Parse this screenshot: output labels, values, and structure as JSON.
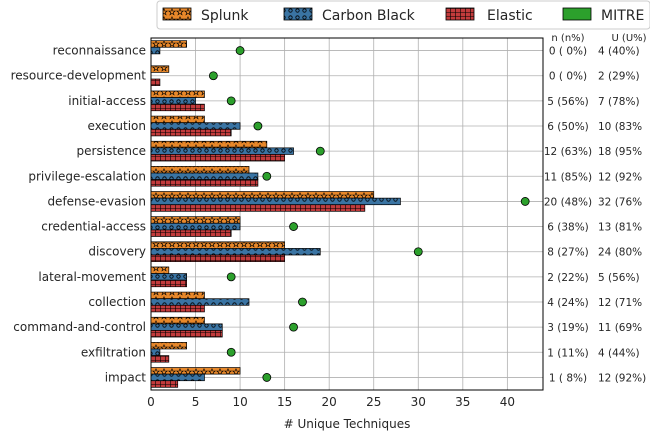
{
  "chart_data": {
    "type": "bar",
    "orientation": "horizontal",
    "xlabel": "# Unique Techniques",
    "ylabel": "",
    "xlim": [
      0,
      44
    ],
    "xticks": [
      0,
      5,
      10,
      15,
      20,
      25,
      30,
      35,
      40
    ],
    "grid": true,
    "legend_position": "top",
    "categories": [
      "reconnaissance",
      "resource-development",
      "initial-access",
      "execution",
      "persistence",
      "privilege-escalation",
      "defense-evasion",
      "credential-access",
      "discovery",
      "lateral-movement",
      "collection",
      "command-and-control",
      "exfiltration",
      "impact"
    ],
    "series": [
      {
        "name": "Splunk",
        "kind": "bar",
        "color": "#e8882a",
        "hatch": "star",
        "values": [
          4,
          2,
          6,
          6,
          13,
          11,
          25,
          10,
          15,
          2,
          6,
          6,
          4,
          10
        ]
      },
      {
        "name": "Carbon Black",
        "kind": "bar",
        "color": "#3a74a3",
        "hatch": "circle",
        "values": [
          1,
          0,
          5,
          10,
          16,
          12,
          28,
          10,
          19,
          4,
          11,
          8,
          1,
          6
        ]
      },
      {
        "name": "Elastic",
        "kind": "bar",
        "color": "#c23b3c",
        "hatch": "grid",
        "values": [
          0,
          1,
          6,
          9,
          15,
          12,
          24,
          9,
          15,
          4,
          6,
          8,
          2,
          3
        ]
      },
      {
        "name": "MITRE",
        "kind": "marker",
        "color": "#2ca02c",
        "values": [
          10,
          7,
          9,
          12,
          19,
          13,
          42,
          16,
          30,
          9,
          17,
          16,
          9,
          13
        ]
      }
    ],
    "annotation_headers": {
      "n": "n (n%)",
      "u": "U (U%)"
    },
    "annotations": {
      "n": [
        "0 ( 0%)",
        "0 ( 0%)",
        "5 (56%)",
        "6 (50%)",
        "12 (63%)",
        "11 (85%)",
        "20 (48%)",
        "6 (38%)",
        "8 (27%)",
        "2 (22%)",
        "4 (24%)",
        "3 (19%)",
        "1 (11%)",
        "1 ( 8%)"
      ],
      "u": [
        "4 (40%)",
        "2 (29%)",
        "7 (78%)",
        "10 (83%",
        "18 (95%",
        "12 (92%",
        "32 (76%",
        "13 (81%",
        "24 (80%",
        "5 (56%)",
        "12 (71%",
        "11 (69%",
        "4 (44%)",
        "12 (92%)"
      ]
    }
  }
}
